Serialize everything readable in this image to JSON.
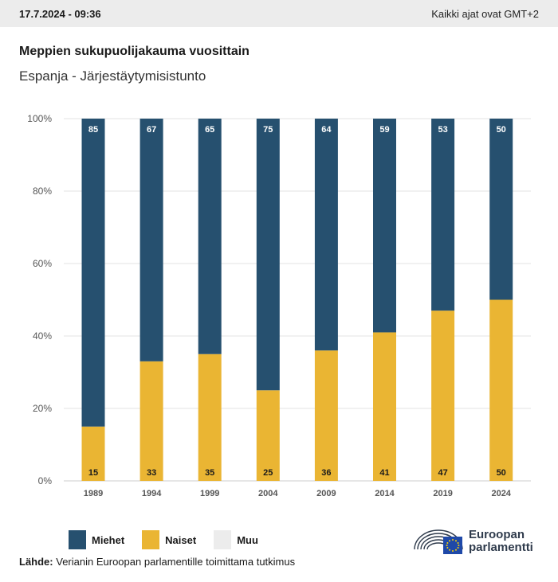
{
  "header": {
    "timestamp": "17.7.2024 - 09:36",
    "timezone_note": "Kaikki ajat ovat GMT+2"
  },
  "title": "Meppien sukupuolijakauma vuosittain",
  "subtitle": "Espanja - Järjestäytymisistunto",
  "colors": {
    "miehet": "#26506f",
    "naiset": "#eab533",
    "muu": "#ececec",
    "grid": "#e3e3e3",
    "axis_text": "#555555"
  },
  "chart_data": {
    "type": "bar",
    "stacked": true,
    "categories": [
      "1989",
      "1994",
      "1999",
      "2004",
      "2009",
      "2014",
      "2019",
      "2024"
    ],
    "series": [
      {
        "name": "Naiset",
        "values": [
          15,
          33,
          35,
          25,
          36,
          41,
          47,
          50
        ]
      },
      {
        "name": "Miehet",
        "values": [
          85,
          67,
          65,
          75,
          64,
          59,
          53,
          50
        ]
      }
    ],
    "ylim": [
      0,
      100
    ],
    "yticks": [
      "0%",
      "20%",
      "40%",
      "60%",
      "80%",
      "100%"
    ],
    "grid": true
  },
  "legend": [
    {
      "label": "Miehet",
      "color_key": "miehet"
    },
    {
      "label": "Naiset",
      "color_key": "naiset"
    },
    {
      "label": "Muu",
      "color_key": "muu"
    }
  ],
  "source": {
    "label": "Lähde:",
    "text": "Verianin Euroopan parlamentille toimittama tutkimus"
  },
  "logo": {
    "line1": "Euroopan",
    "line2": "parlamentti",
    "icon": "european-parliament-hemicycle-icon"
  }
}
